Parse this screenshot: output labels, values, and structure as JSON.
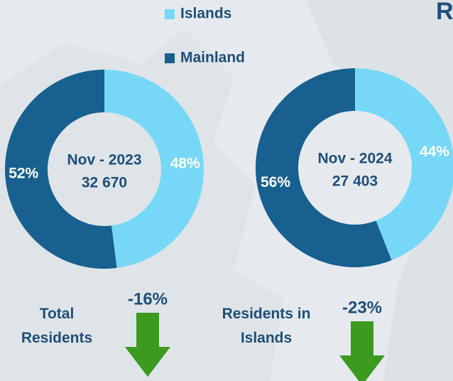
{
  "title": "R",
  "chart_data": [
    {
      "type": "pie",
      "donut": true,
      "legend": true,
      "center_label": "Nov - 2023",
      "total": 32670,
      "total_label": "32 670",
      "categories": [
        "Islands",
        "Mainland"
      ],
      "values": [
        48,
        52
      ],
      "value_labels": [
        "48%",
        "52%"
      ],
      "colors": [
        "#76d8f6",
        "#17608f"
      ]
    },
    {
      "type": "pie",
      "donut": true,
      "legend": false,
      "center_label": "Nov - 2024",
      "total": 27403,
      "total_label": "27 403",
      "categories": [
        "Islands",
        "Mainland"
      ],
      "values": [
        44,
        56
      ],
      "value_labels": [
        "44%",
        "56%"
      ],
      "colors": [
        "#76d8f6",
        "#17608f"
      ]
    }
  ],
  "indicators": [
    {
      "label": "Total Residents",
      "value": -16,
      "value_label": "-16%",
      "color": "#3c9a1f"
    },
    {
      "label": "Residents in Islands",
      "value": -23,
      "value_label": "-23%",
      "color": "#3c9a1f"
    }
  ]
}
